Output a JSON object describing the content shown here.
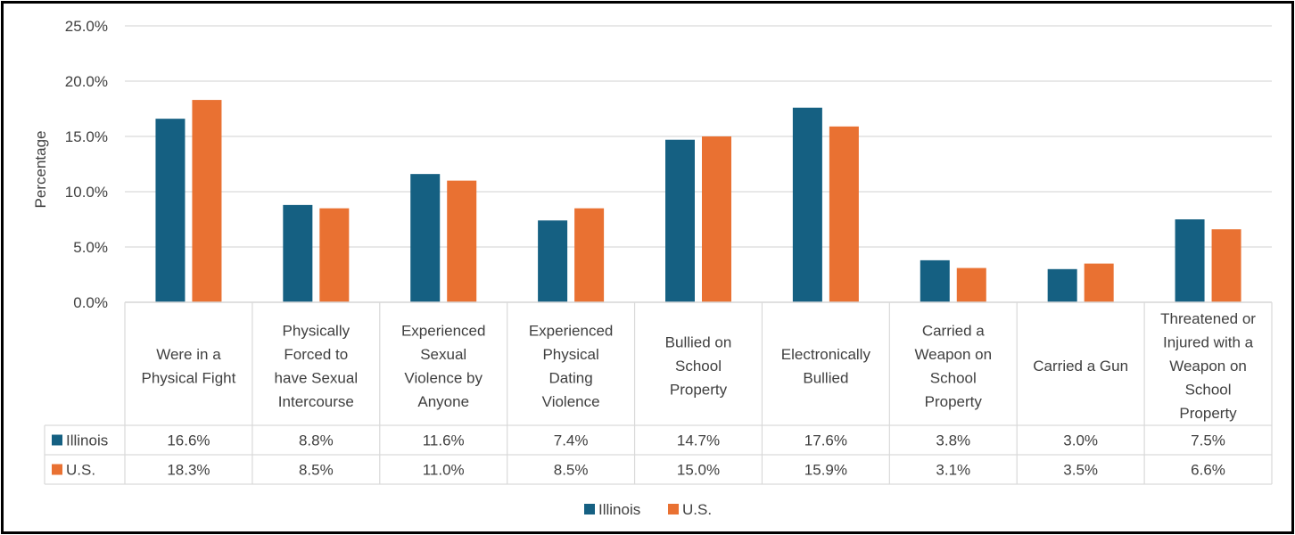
{
  "chart_data": {
    "type": "bar",
    "ylabel": "Percentage",
    "ylim": [
      0,
      25
    ],
    "y_ticks": [
      "0.0%",
      "5.0%",
      "10.0%",
      "15.0%",
      "20.0%",
      "25.0%"
    ],
    "y_tick_values": [
      0,
      5,
      10,
      15,
      20,
      25
    ],
    "grid": true,
    "legend_placement": "bottom",
    "categories": [
      [
        "Were in a",
        "Physical Fight"
      ],
      [
        "Physically",
        "Forced to",
        "have Sexual",
        "Intercourse"
      ],
      [
        "Experienced",
        "Sexual",
        "Violence by",
        "Anyone"
      ],
      [
        "Experienced",
        "Physical",
        "Dating",
        "Violence"
      ],
      [
        "Bullied on",
        "School",
        "Property"
      ],
      [
        "Electronically",
        "Bullied"
      ],
      [
        "Carried a",
        "Weapon on",
        "School",
        "Property"
      ],
      [
        "Carried a Gun"
      ],
      [
        "Threatened or",
        "Injured with a",
        "Weapon on",
        "School",
        "Property"
      ]
    ],
    "series": [
      {
        "name": "Illinois",
        "color": "#156082",
        "values": [
          16.6,
          8.8,
          11.6,
          7.4,
          14.7,
          17.6,
          3.8,
          3.0,
          7.5
        ],
        "labels": [
          "16.6%",
          "8.8%",
          "11.6%",
          "7.4%",
          "14.7%",
          "17.6%",
          "3.8%",
          "3.0%",
          "7.5%"
        ]
      },
      {
        "name": "U.S.",
        "color": "#E97132",
        "values": [
          18.3,
          8.5,
          11.0,
          8.5,
          15.0,
          15.9,
          3.1,
          3.5,
          6.6
        ],
        "labels": [
          "18.3%",
          "8.5%",
          "11.0%",
          "8.5%",
          "15.0%",
          "15.9%",
          "3.1%",
          "3.5%",
          "6.6%"
        ]
      }
    ]
  }
}
